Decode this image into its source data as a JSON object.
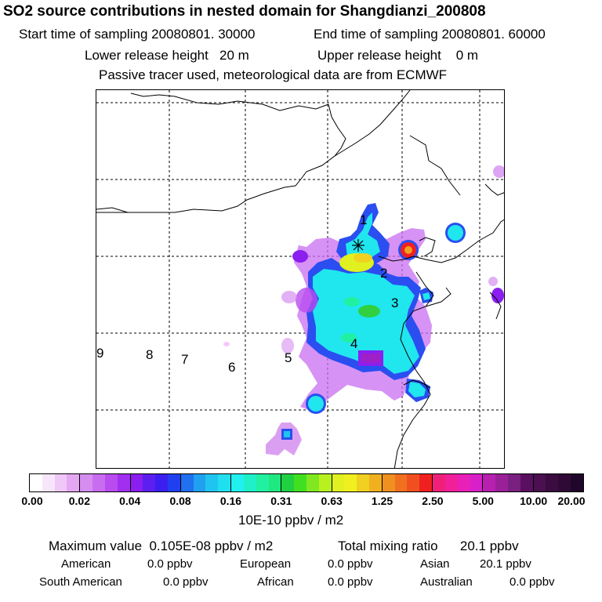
{
  "header": {
    "title": "SO2 source contributions in nested domain for Shangdianzi_200808",
    "start_label": "Start time of sampling 20080801. 30000",
    "end_label": "End time of sampling 20080801. 60000",
    "lower_label": "Lower release height   20 m",
    "upper_label": "Upper release height    0 m",
    "note": "Passive tracer used, meteorological data are from ECMWF"
  },
  "map": {
    "markers": [
      "1",
      "2",
      "3",
      "4",
      "5",
      "6",
      "7",
      "8",
      "9"
    ],
    "receptor_symbol": "✳"
  },
  "legend": {
    "ticks": [
      "0.00",
      "0.02",
      "0.04",
      "0.08",
      "0.16",
      "0.31",
      "0.63",
      "1.25",
      "2.50",
      "5.00",
      "10.00",
      "20.00"
    ],
    "unit": "10E-10 ppbv / m2",
    "colors": [
      [
        "#ffffff",
        "#f7e6fb",
        "#efc8f7",
        "#e4a8f2"
      ],
      [
        "#d58ef0",
        "#c86df0",
        "#b84cf0",
        "#a22ef0"
      ],
      [
        "#8a1ff0",
        "#5c1ff0",
        "#3a1ff0",
        "#2040f0"
      ],
      [
        "#2070f0",
        "#20a0f0",
        "#20c4f0",
        "#20e0f0"
      ],
      [
        "#20f0f0",
        "#20f0c8",
        "#20f0a0",
        "#20e880"
      ],
      [
        "#20d040",
        "#40e020",
        "#80e820",
        "#b8f020"
      ],
      [
        "#e0f020",
        "#f0f020",
        "#f0d020",
        "#f0b020"
      ],
      [
        "#f09020",
        "#f07020",
        "#f05020",
        "#f02020"
      ],
      [
        "#f0207a",
        "#f0209a",
        "#e820b8",
        "#d820c8"
      ],
      [
        "#b820b0",
        "#9a2098",
        "#7a2080",
        "#5a1060"
      ],
      [
        "#4a1050",
        "#3a0c40",
        "#300a36",
        "#20062a"
      ]
    ]
  },
  "footer": {
    "max_label": "Maximum value  0.105E-08 ppbv / m2",
    "total_label": "Total mixing ratio      20.1 ppbv",
    "american": "American",
    "american_val": "0.0 ppbv",
    "european": "European",
    "european_val": "0.0 ppbv",
    "asian": "Asian",
    "asian_val": "20.1 ppbv",
    "south_american": "South American",
    "south_american_val": "0.0 ppbv",
    "african": "African",
    "african_val": "0.0 ppbv",
    "australian": "Australian",
    "australian_val": "0.0 ppbv"
  }
}
